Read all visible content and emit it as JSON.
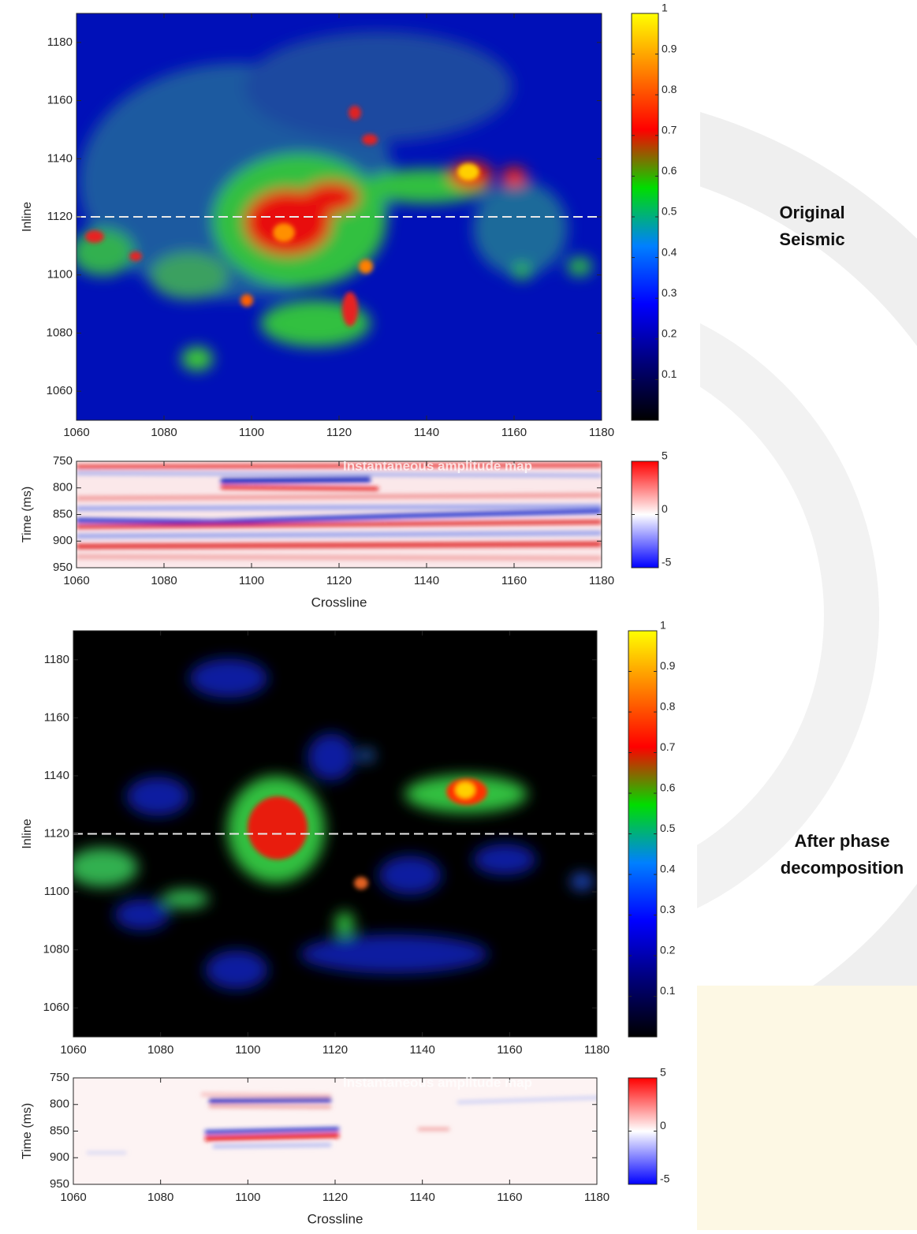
{
  "labels": [
    "Original Seismic",
    "After phase decomposition"
  ],
  "chart_data": [
    {
      "type": "heatmap",
      "ylabel": "Inline",
      "xlim": [
        1060,
        1180
      ],
      "xticks": [
        1060,
        1080,
        1100,
        1120,
        1140,
        1160,
        1180
      ],
      "ylim": [
        1050,
        1190
      ],
      "yticks": [
        1060,
        1080,
        1100,
        1120,
        1140,
        1160,
        1180
      ],
      "clim": [
        0,
        1
      ],
      "cticks": [
        0.1,
        0.2,
        0.3,
        0.4,
        0.5,
        0.6,
        0.7,
        0.8,
        0.9,
        1
      ],
      "colormap": [
        "#000000",
        "#00007a",
        "#0000ff",
        "#0080ff",
        "#00dd00",
        "#ff0000",
        "#ff8000",
        "#ffff00"
      ],
      "hline": 1120
    },
    {
      "type": "heatmap",
      "title": "Instantaneous amplitude map",
      "xlabel": "Crossline",
      "ylabel": "Time (ms)",
      "xlim": [
        1060,
        1180
      ],
      "xticks": [
        1060,
        1080,
        1100,
        1120,
        1140,
        1160,
        1180
      ],
      "ylim": [
        750,
        950
      ],
      "yreverse": true,
      "yticks": [
        750,
        800,
        850,
        900,
        950
      ],
      "clim": [
        -5,
        5
      ],
      "cticks": [
        -5,
        0,
        5
      ],
      "colormap": [
        "#0000ff",
        "#ffffff",
        "#ff0000"
      ]
    },
    {
      "type": "heatmap",
      "ylabel": "Inline",
      "xlim": [
        1060,
        1180
      ],
      "xticks": [
        1060,
        1080,
        1100,
        1120,
        1140,
        1160,
        1180
      ],
      "ylim": [
        1050,
        1190
      ],
      "yticks": [
        1060,
        1080,
        1100,
        1120,
        1140,
        1160,
        1180
      ],
      "clim": [
        0,
        1
      ],
      "cticks": [
        0.1,
        0.2,
        0.3,
        0.4,
        0.5,
        0.6,
        0.7,
        0.8,
        0.9,
        1
      ],
      "colormap": [
        "#000000",
        "#00007a",
        "#0000ff",
        "#0080ff",
        "#00dd00",
        "#ff0000",
        "#ff8000",
        "#ffff00"
      ],
      "hline": 1120
    },
    {
      "type": "heatmap",
      "title": "Instantaneous amplitude map",
      "xlabel": "Crossline",
      "ylabel": "Time (ms)",
      "xlim": [
        1060,
        1180
      ],
      "xticks": [
        1060,
        1080,
        1100,
        1120,
        1140,
        1160,
        1180
      ],
      "ylim": [
        750,
        950
      ],
      "yreverse": true,
      "yticks": [
        750,
        800,
        850,
        900,
        950
      ],
      "clim": [
        -5,
        5
      ],
      "cticks": [
        -5,
        0,
        5
      ],
      "colormap": [
        "#0000ff",
        "#ffffff",
        "#ff0000"
      ]
    }
  ]
}
